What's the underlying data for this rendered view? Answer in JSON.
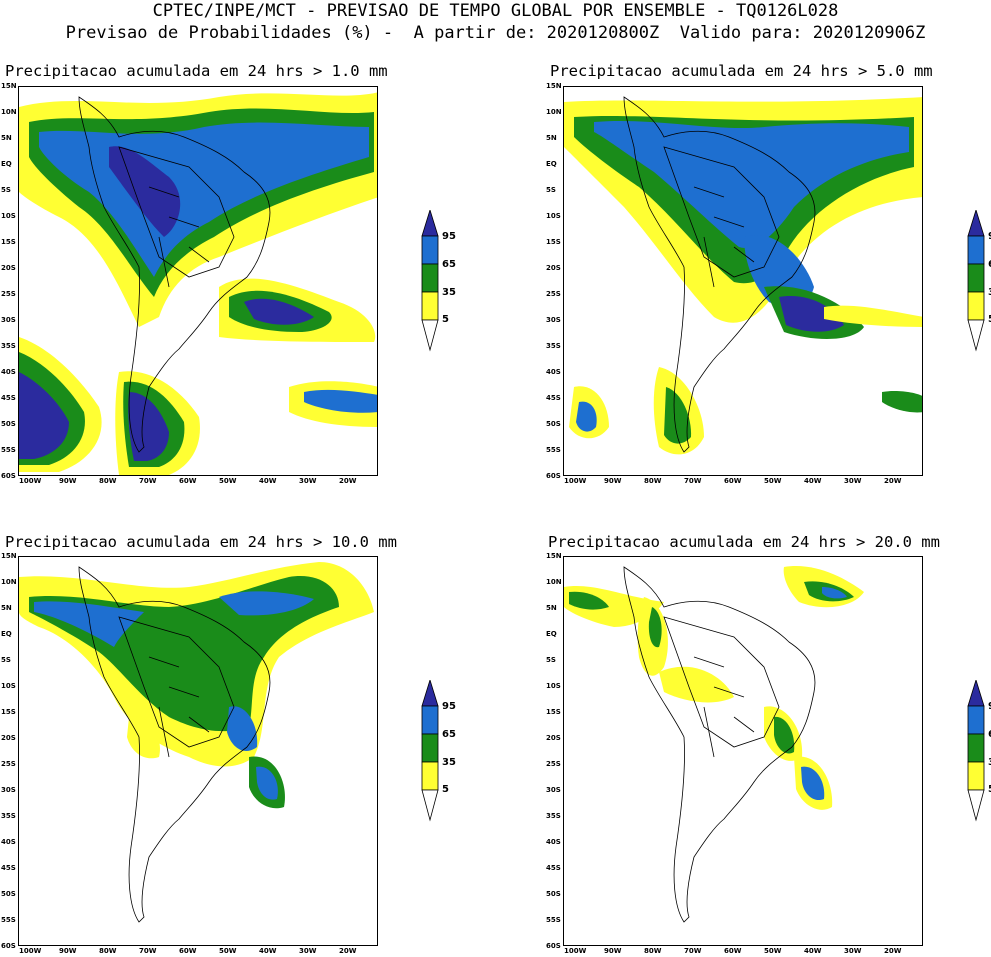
{
  "header": {
    "line1": "CPTEC/INPE/MCT - PREVISAO DE TEMPO GLOBAL POR ENSEMBLE - TQ0126L028",
    "line2": "Previsao de Probabilidades (%) -  A partir de: 2020120800Z  Valido para: 2020120906Z"
  },
  "panels": [
    {
      "title": "Precipitacao acumulada em 24 hrs > 1.0 mm"
    },
    {
      "title": "Precipitacao acumulada em 24 hrs > 5.0 mm"
    },
    {
      "title": "Precipitacao acumulada em 24 hrs > 10.0 mm"
    },
    {
      "title": "Precipitacao acumulada em 24 hrs > 20.0 mm"
    }
  ],
  "lat_labels": [
    "15N",
    "10N",
    "5N",
    "EQ",
    "5S",
    "10S",
    "15S",
    "20S",
    "25S",
    "30S",
    "35S",
    "40S",
    "45S",
    "50S",
    "55S",
    "60S"
  ],
  "lon_labels": [
    "100W",
    "90W",
    "80W",
    "70W",
    "60W",
    "50W",
    "40W",
    "30W",
    "20W"
  ],
  "colorbar": {
    "labels": [
      "95",
      "65",
      "35",
      "5"
    ],
    "colors": {
      "c95": "#2b2b9e",
      "c65": "#1e6fd0",
      "c35": "#1a8c1a",
      "c5": "#ffff33"
    }
  }
}
